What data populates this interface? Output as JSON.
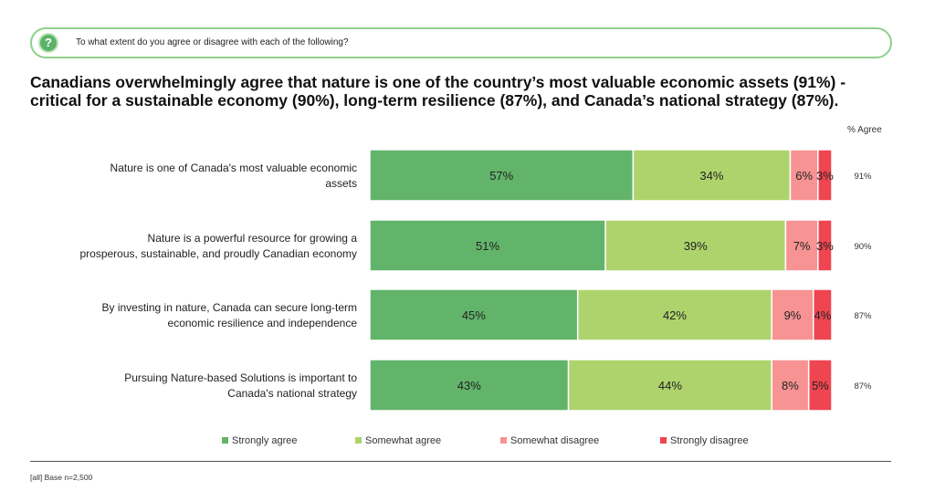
{
  "question": "To what extent do you agree or disagree with each of the following?",
  "title": "Canadians overwhelmingly agree that nature is one of the country’s most valuable economic assets (91%) - critical for a sustainable economy (90%), long-term resilience (87%), and Canada’s national strategy (87%).",
  "footer": "[all] Base n=2,500",
  "chart_data": {
    "type": "bar",
    "orientation": "horizontal",
    "stacked": true,
    "categories": [
      "Nature is one of Canada's most valuable economic assets",
      "Nature is a powerful resource for growing a prosperous, sustainable, and proudly Canadian economy",
      "By investing in nature, Canada can secure long-term economic resilience and independence",
      "Pursuing Nature-based Solutions is important to Canada's national strategy"
    ],
    "series": [
      {
        "name": "Strongly agree",
        "color": "#62b46b",
        "values": [
          57,
          51,
          45,
          43
        ]
      },
      {
        "name": "Somewhat agree",
        "color": "#aed36c",
        "values": [
          34,
          39,
          42,
          44
        ]
      },
      {
        "name": "Somewhat disagree",
        "color": "#f79393",
        "values": [
          6,
          7,
          9,
          8
        ]
      },
      {
        "name": "Strongly disagree",
        "color": "#ef4550",
        "values": [
          3,
          3,
          4,
          5
        ]
      }
    ],
    "agree_header": "% Agree",
    "agree_totals": [
      "91%",
      "90%",
      "87%",
      "87%"
    ],
    "legend_position": "bottom",
    "grid": false
  }
}
